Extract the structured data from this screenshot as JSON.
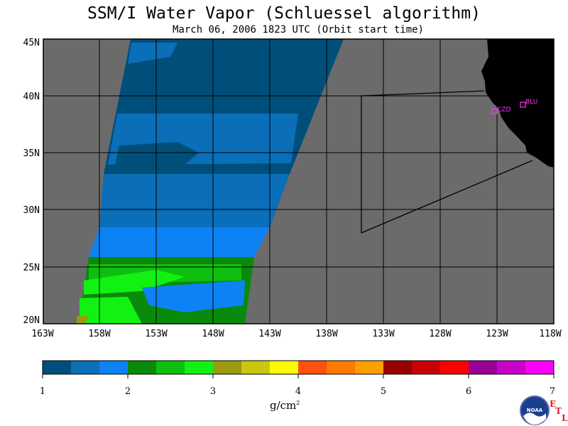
{
  "title": "SSM/I Water Vapor (Schluessel algorithm)",
  "subtitle": "March 06, 2006  1823 UTC  (Orbit start time)",
  "map": {
    "lat_labels": [
      "45N",
      "40N",
      "35N",
      "30N",
      "25N",
      "20N"
    ],
    "lon_labels": [
      "163W",
      "158W",
      "153W",
      "148W",
      "143W",
      "138W",
      "133W",
      "128W",
      "123W",
      "118W"
    ],
    "stations": [
      {
        "code": "CZD",
        "color": "#ff33ff"
      },
      {
        "code": "BLU",
        "color": "#ff33ff"
      }
    ],
    "colors": {
      "ocean_background": "#6b6b6b",
      "land": "#000000"
    }
  },
  "colorbar": {
    "tick_labels": [
      "1",
      "2",
      "3",
      "4",
      "5",
      "6",
      "7"
    ],
    "units_label": "g/cm",
    "units_superscript": "2",
    "colors": [
      "#004f7a",
      "#0a6eb8",
      "#0d82f5",
      "#0a8a0a",
      "#0fbf0f",
      "#12f212",
      "#9a9a10",
      "#c8c810",
      "#fafa00",
      "#ff5010",
      "#ff7a00",
      "#ff9f00",
      "#960000",
      "#c80000",
      "#ff0000",
      "#9a0096",
      "#c800c8",
      "#ff00ff"
    ]
  },
  "branding": {
    "logo_text": "NOAA",
    "etl_letters": [
      "E",
      "T",
      "L"
    ]
  }
}
